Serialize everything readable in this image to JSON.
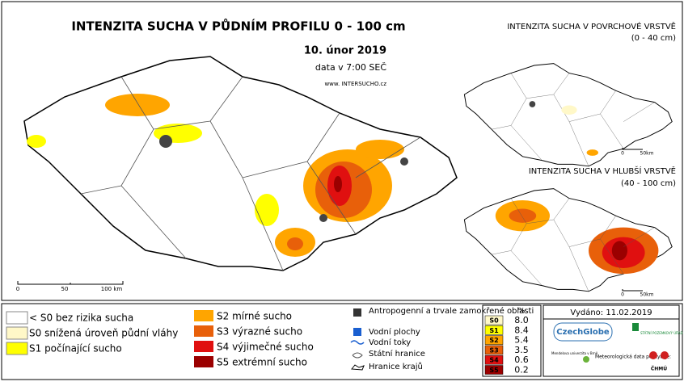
{
  "main_map": {
    "title": "INTENZITA SUCHA V PŮDNÍM PROFILU 0 - 100 cm",
    "date": "10. únor 2019",
    "time": "data v 7:00 SEČ",
    "website": "www. INTERSUCHO.cz",
    "scale_labels": [
      "0",
      "50",
      "100 km"
    ]
  },
  "surface_map": {
    "title": "INTENZITA SUCHA V POVRCHOVÉ VRSTVĚ",
    "depth": "(0 - 40 cm)",
    "scale_labels": [
      "0",
      "50km"
    ]
  },
  "deep_map": {
    "title": "INTENZITA SUCHA V HLUBŠÍ VRSTVĚ",
    "depth": "(40 - 100 cm)",
    "scale_labels": [
      "0",
      "50km"
    ]
  },
  "legend": {
    "drought_classes": [
      {
        "label": "< S0 bez rizika sucha",
        "color": "#ffffff"
      },
      {
        "label": "S0 snížená úroveň půdní vláhy",
        "color": "#fff8c8"
      },
      {
        "label": "S1 počínající sucho",
        "color": "#ffff00"
      },
      {
        "label": "S2 mírné sucho",
        "color": "#ffa500"
      },
      {
        "label": "S3 výrazné sucho",
        "color": "#e8600a"
      },
      {
        "label": "S4 výjimečné sucho",
        "color": "#e01010"
      },
      {
        "label": "S5 extrémní sucho",
        "color": "#9b0000"
      }
    ],
    "other": [
      "Antropogenní a trvale zamokřené oblasti",
      "Vodní plochy",
      "Vodní toky",
      "Státní hranice",
      "Hranice krajů"
    ]
  },
  "table": {
    "header": "%",
    "rows": [
      [
        "S0",
        "8.0"
      ],
      [
        "S1",
        "8.4"
      ],
      [
        "S2",
        "5.4"
      ],
      [
        "S3",
        "3.5"
      ],
      [
        "S4",
        "0.6"
      ],
      [
        "S5",
        "0.2"
      ]
    ]
  },
  "issued": "Vydáno: 11.02.2019",
  "logos": {
    "czechglobe": "CzechGlobe",
    "spu": "STÁTNÍ POZEMKOVÝ ÚŘAD",
    "mendelu": "Mendelova univerzita v Brně",
    "meteo": "Meteorologická data poskytuje:",
    "chmu": "ČHMÚ"
  }
}
